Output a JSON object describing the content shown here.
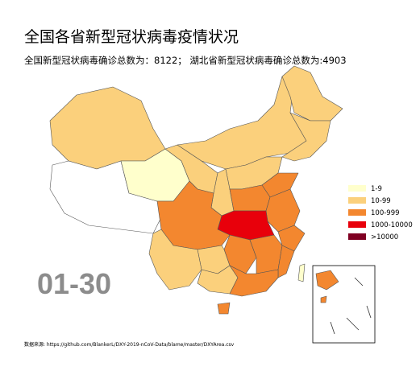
{
  "title": "全国各省新型冠状病毒疫情状况",
  "subtitle": "全国新型冠状病毒确诊总数为：8122；  湖北省新型冠状病毒确诊总数为:4903",
  "legend": [
    {
      "label": "1-9",
      "color": "#ffffcc"
    },
    {
      "label": "10-99",
      "color": "#fbd07c"
    },
    {
      "label": "100-999",
      "color": "#f3872f"
    },
    {
      "label": "1000-10000",
      "color": "#e8000b"
    },
    {
      "label": ">10000",
      "color": "#7f0022"
    }
  ],
  "date": "01-30",
  "source": "数据来源: https://github.com/BlankerL/DXY-2019-nCoV-Data/blame/master/DXYArea.csv"
}
